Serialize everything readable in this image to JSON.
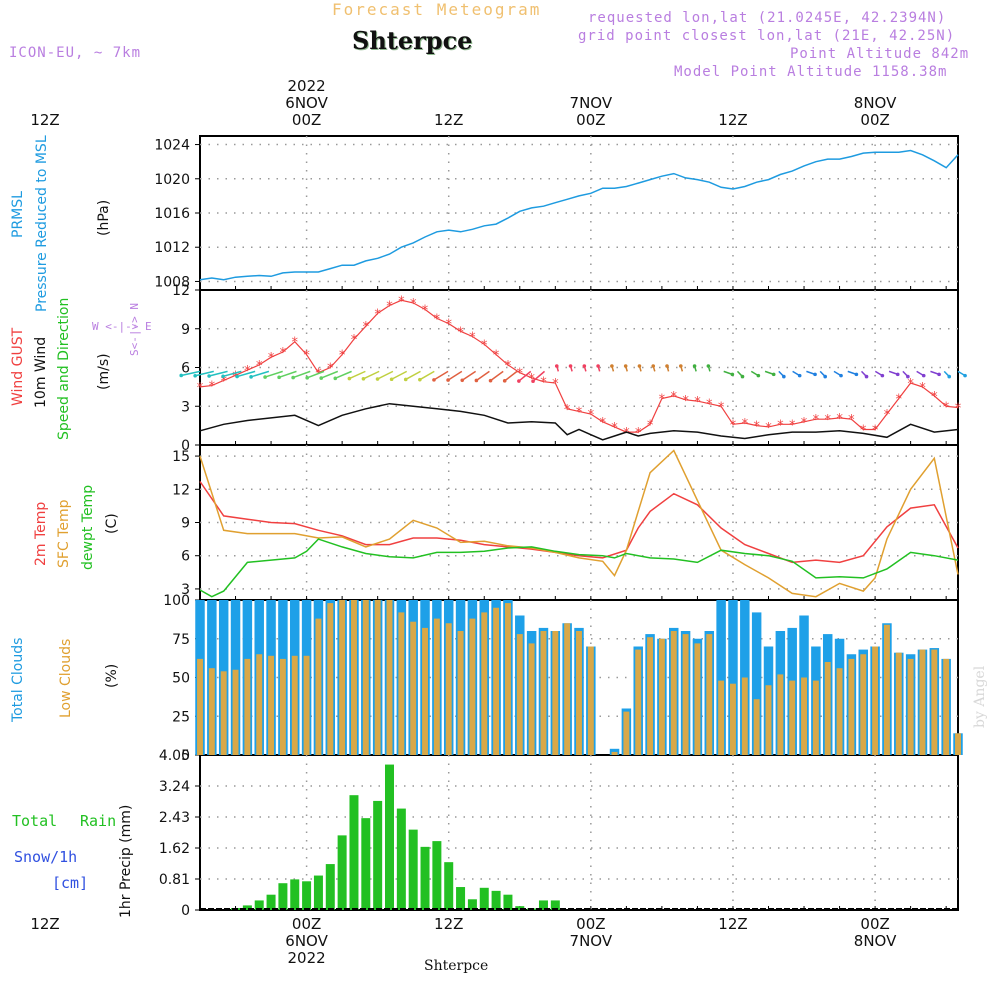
{
  "header": {
    "super_title": "Forecast Meteogram",
    "location": "Shterpce",
    "model": "ICON-EU, ~ 7km",
    "requested": "requested lon,lat (21.0245E, 42.2394N)",
    "grid_point": "grid point closest lon,lat (21E, 42.25N)",
    "point_alt": "Point Altitude 842m",
    "model_alt": "Model Point Altitude 1158.38m"
  },
  "top_axis": [
    {
      "line1": "2022",
      "line2": "6NOV",
      "line3": "00Z"
    },
    {
      "line1": "",
      "line2": "",
      "line3": "12Z"
    },
    {
      "line1": "",
      "line2": "7NOV",
      "line3": "00Z"
    },
    {
      "line1": "",
      "line2": "",
      "line3": "12Z"
    },
    {
      "line1": "",
      "line2": "8NOV",
      "line3": "00Z"
    },
    {
      "line1": "",
      "line2": "",
      "line3": "12Z"
    }
  ],
  "bottom_axis": [
    {
      "line1": "00Z",
      "line2": "6NOV",
      "line3": "2022"
    },
    {
      "line1": "12Z",
      "line2": "",
      "line3": ""
    },
    {
      "line1": "00Z",
      "line2": "7NOV",
      "line3": ""
    },
    {
      "line1": "12Z",
      "line2": "",
      "line3": ""
    },
    {
      "line1": "00Z",
      "line2": "8NOV",
      "line3": ""
    },
    {
      "line1": "12Z",
      "line2": "",
      "line3": ""
    }
  ],
  "footer": {
    "location": "Shterpce",
    "credit": "by Angel"
  },
  "labels": {
    "p1a": "PRMSL",
    "p1b": "Pressure Reduced to MSL",
    "p1u": "(hPa)",
    "p2a": "Wind GUST",
    "p2b": "10m Wind",
    "p2c": "Speed and Direction",
    "p2u": "(m/s)",
    "compass_ns": "S<-|-> N",
    "compass_we": "W <-|-> E",
    "p3a": "2m Temp",
    "p3b": "SFC Temp",
    "p3c": "dewpt Temp",
    "p3u": "(C)",
    "p4a": "Total Clouds",
    "p4b": "Low Clouds",
    "p4u": "(%)",
    "p5a": "Total",
    "p5b": "Rain",
    "p5c": "Snow/1h",
    "p5d": "[cm]",
    "p5u": "1hr Precip (mm)"
  },
  "colors": {
    "pressure": "#1e9be0",
    "gust": "#f04040",
    "wind": "#111111",
    "t2m": "#f04040",
    "tsfc": "#e0a030",
    "dewpt": "#22c022",
    "cloud_total": "#1ea0e8",
    "cloud_low": "#d8a848",
    "rain": "#22c022",
    "snow_label": "#3050e0",
    "grid": "#999999"
  },
  "chart_data": [
    {
      "type": "line",
      "x_unit": "hours from 2022-11-05 15Z",
      "xlim": [
        0,
        64
      ],
      "ylim": [
        1007,
        1025
      ],
      "yticks": [
        1008,
        1012,
        1016,
        1020,
        1024
      ],
      "series": [
        {
          "name": "PRMSL",
          "x": [
            0,
            1,
            2,
            3,
            4,
            5,
            6,
            7,
            8,
            9,
            10,
            11,
            12,
            13,
            14,
            15,
            16,
            17,
            18,
            19,
            20,
            21,
            22,
            23,
            24,
            25,
            26,
            27,
            28,
            29,
            30,
            31,
            32,
            33,
            34,
            35,
            36,
            37,
            38,
            39,
            40,
            41,
            42,
            43,
            44,
            45,
            46,
            47,
            48,
            49,
            50,
            51,
            52,
            53,
            54,
            55,
            56,
            57,
            58,
            59,
            60,
            61,
            62,
            63,
            64
          ],
          "y": [
            1008.2,
            1008.4,
            1008.2,
            1008.5,
            1008.6,
            1008.7,
            1008.6,
            1009.0,
            1009.1,
            1009.1,
            1009.1,
            1009.5,
            1009.9,
            1009.9,
            1010.4,
            1010.7,
            1011.2,
            1012.0,
            1012.5,
            1013.2,
            1013.8,
            1014.0,
            1013.8,
            1014.1,
            1014.5,
            1014.7,
            1015.4,
            1016.2,
            1016.6,
            1016.8,
            1017.2,
            1017.6,
            1018.0,
            1018.3,
            1018.9,
            1018.9,
            1019.1,
            1019.5,
            1019.9,
            1020.3,
            1020.6,
            1020.1,
            1019.9,
            1019.6,
            1019.0,
            1018.8,
            1019.1,
            1019.6,
            1019.9,
            1020.5,
            1020.9,
            1021.5,
            1022.0,
            1022.3,
            1022.3,
            1022.6,
            1023.0,
            1023.1,
            1023.1,
            1023.1,
            1023.3,
            1022.8,
            1022.1,
            1021.3,
            1022.8
          ]
        }
      ]
    },
    {
      "type": "line",
      "x_unit": "hours from 2022-11-05 15Z",
      "xlim": [
        0,
        64
      ],
      "ylim": [
        0,
        12
      ],
      "yticks": [
        0,
        3,
        6,
        9,
        12
      ],
      "series": [
        {
          "name": "Wind GUST",
          "x": [
            0,
            1,
            2,
            3,
            4,
            5,
            6,
            7,
            8,
            9,
            10,
            11,
            12,
            13,
            14,
            15,
            16,
            17,
            18,
            19,
            20,
            21,
            22,
            23,
            24,
            25,
            26,
            27,
            28,
            29,
            30,
            31,
            32,
            33,
            34,
            35,
            36,
            37,
            38,
            39,
            40,
            41,
            42,
            43,
            44,
            45,
            46,
            47,
            48,
            49,
            50,
            51,
            52,
            53,
            54,
            55,
            56,
            57,
            58,
            59,
            60,
            61,
            62,
            63,
            64
          ],
          "y": [
            4.5,
            4.6,
            5.0,
            5.4,
            5.8,
            6.2,
            6.8,
            7.2,
            8.0,
            7.0,
            5.6,
            6.0,
            7.0,
            8.2,
            9.2,
            10.2,
            10.8,
            11.2,
            11.0,
            10.5,
            9.8,
            9.4,
            8.8,
            8.4,
            7.8,
            7.0,
            6.2,
            5.6,
            5.2,
            4.9,
            4.8,
            2.8,
            2.6,
            2.4,
            1.8,
            1.4,
            1.0,
            1.0,
            1.6,
            3.6,
            3.8,
            3.5,
            3.4,
            3.2,
            3.0,
            1.6,
            1.7,
            1.5,
            1.4,
            1.6,
            1.6,
            1.8,
            2.0,
            2.0,
            2.1,
            2.0,
            1.2,
            1.2,
            2.4,
            3.6,
            4.8,
            4.5,
            3.8,
            3.0,
            2.9
          ]
        },
        {
          "name": "10m Wind",
          "x": [
            0,
            2,
            4,
            6,
            8,
            10,
            12,
            14,
            16,
            18,
            20,
            22,
            24,
            26,
            28,
            30,
            31,
            32,
            33,
            34,
            35,
            36,
            37,
            38,
            40,
            42,
            44,
            46,
            48,
            50,
            52,
            54,
            56,
            58,
            60,
            62,
            64
          ],
          "y": [
            1.1,
            1.6,
            1.9,
            2.1,
            2.3,
            1.5,
            2.3,
            2.8,
            3.2,
            3.0,
            2.8,
            2.6,
            2.3,
            1.7,
            1.8,
            1.7,
            0.8,
            1.2,
            0.8,
            0.4,
            0.7,
            1.0,
            0.7,
            0.9,
            1.1,
            1.0,
            0.7,
            0.5,
            0.8,
            1.0,
            1.0,
            1.1,
            0.9,
            0.6,
            1.6,
            1.0,
            1.2
          ]
        }
      ],
      "wind_arrow_count": 56
    },
    {
      "type": "line",
      "x_unit": "hours from 2022-11-05 15Z",
      "xlim": [
        0,
        64
      ],
      "ylim": [
        2,
        16
      ],
      "yticks": [
        3,
        6,
        9,
        12,
        15
      ],
      "series": [
        {
          "name": "2m Temp",
          "x": [
            0,
            2,
            4,
            6,
            8,
            10,
            12,
            14,
            16,
            18,
            20,
            22,
            24,
            26,
            28,
            30,
            32,
            34,
            36,
            37,
            38,
            40,
            42,
            44,
            46,
            48,
            50,
            52,
            54,
            56,
            58,
            60,
            62,
            64
          ],
          "y": [
            12.7,
            9.6,
            9.3,
            9.0,
            8.9,
            8.3,
            7.8,
            7.0,
            7.0,
            7.6,
            7.6,
            7.4,
            7.0,
            6.8,
            6.6,
            6.3,
            6.0,
            5.8,
            6.5,
            8.5,
            10.0,
            11.6,
            10.6,
            8.5,
            7.0,
            6.2,
            5.4,
            5.6,
            5.4,
            6.0,
            8.6,
            10.3,
            10.6,
            6.7
          ]
        },
        {
          "name": "SFC Temp",
          "x": [
            0,
            2,
            4,
            6,
            8,
            10,
            12,
            14,
            16,
            18,
            20,
            22,
            24,
            26,
            28,
            30,
            32,
            34,
            35,
            36,
            37,
            38,
            40,
            42,
            44,
            46,
            48,
            50,
            52,
            54,
            56,
            57,
            58,
            60,
            62,
            64
          ],
          "y": [
            15.0,
            8.3,
            8.0,
            8.0,
            8.0,
            7.6,
            7.7,
            6.8,
            7.5,
            9.2,
            8.5,
            7.2,
            7.3,
            6.9,
            6.7,
            6.3,
            5.8,
            5.5,
            4.2,
            6.5,
            10.0,
            13.5,
            15.5,
            11.0,
            6.5,
            5.2,
            4.0,
            2.6,
            2.3,
            3.5,
            2.8,
            4.0,
            7.5,
            12.0,
            14.8,
            4.3
          ]
        },
        {
          "name": "dewpt Temp",
          "x": [
            0,
            1,
            2,
            4,
            6,
            8,
            9,
            10,
            12,
            14,
            16,
            18,
            20,
            22,
            24,
            26,
            28,
            30,
            32,
            34,
            35,
            36,
            38,
            40,
            42,
            44,
            46,
            48,
            50,
            52,
            54,
            56,
            58,
            60,
            62,
            64
          ],
          "y": [
            2.9,
            2.3,
            2.8,
            5.4,
            5.6,
            5.8,
            6.4,
            7.5,
            6.8,
            6.2,
            5.9,
            5.8,
            6.3,
            6.3,
            6.4,
            6.7,
            6.8,
            6.4,
            6.1,
            6.0,
            5.8,
            6.2,
            5.8,
            5.7,
            5.4,
            6.5,
            6.2,
            6.0,
            5.5,
            4.0,
            4.1,
            4.0,
            4.8,
            6.3,
            6.0,
            5.6
          ]
        }
      ]
    },
    {
      "type": "bar",
      "x_unit": "hours from 2022-11-05 15Z",
      "xlim": [
        0,
        64
      ],
      "ylim": [
        0,
        100
      ],
      "yticks": [
        0,
        25,
        50,
        75,
        100
      ],
      "series": [
        {
          "name": "Total Clouds",
          "x": [
            0,
            1,
            2,
            3,
            4,
            5,
            6,
            7,
            8,
            9,
            10,
            11,
            12,
            13,
            14,
            15,
            16,
            17,
            18,
            19,
            20,
            21,
            22,
            23,
            24,
            25,
            26,
            27,
            28,
            29,
            30,
            31,
            32,
            33,
            34,
            35,
            36,
            37,
            38,
            39,
            40,
            41,
            42,
            43,
            44,
            45,
            46,
            47,
            48,
            49,
            50,
            51,
            52,
            53,
            54,
            55,
            56,
            57,
            58,
            59,
            60,
            61,
            62,
            63,
            64
          ],
          "values": [
            100,
            100,
            100,
            100,
            100,
            100,
            100,
            100,
            100,
            100,
            100,
            100,
            100,
            100,
            100,
            100,
            100,
            100,
            100,
            100,
            100,
            100,
            100,
            100,
            100,
            100,
            100,
            90,
            80,
            82,
            80,
            85,
            82,
            70,
            0,
            4,
            30,
            70,
            78,
            75,
            82,
            80,
            75,
            80,
            100,
            100,
            100,
            92,
            70,
            80,
            82,
            90,
            70,
            78,
            75,
            65,
            68,
            70,
            85,
            66,
            65,
            68,
            69,
            62,
            14
          ],
          "stroke": true
        },
        {
          "name": "Low Clouds",
          "x": [
            0,
            1,
            2,
            3,
            4,
            5,
            6,
            7,
            8,
            9,
            10,
            11,
            12,
            13,
            14,
            15,
            16,
            17,
            18,
            19,
            20,
            21,
            22,
            23,
            24,
            25,
            26,
            27,
            28,
            29,
            30,
            31,
            32,
            33,
            34,
            35,
            36,
            37,
            38,
            39,
            40,
            41,
            42,
            43,
            44,
            45,
            46,
            47,
            48,
            49,
            50,
            51,
            52,
            53,
            54,
            55,
            56,
            57,
            58,
            59,
            60,
            61,
            62,
            63,
            64
          ],
          "values": [
            62,
            56,
            54,
            55,
            62,
            65,
            64,
            62,
            64,
            64,
            88,
            98,
            100,
            100,
            100,
            100,
            100,
            92,
            86,
            82,
            88,
            85,
            80,
            88,
            92,
            95,
            98,
            78,
            72,
            80,
            80,
            85,
            80,
            70,
            0,
            2,
            28,
            68,
            76,
            75,
            80,
            78,
            72,
            78,
            48,
            46,
            50,
            36,
            45,
            52,
            48,
            50,
            48,
            60,
            56,
            62,
            65,
            70,
            84,
            66,
            62,
            68,
            68,
            62,
            14
          ]
        }
      ]
    },
    {
      "type": "bar",
      "x_unit": "hours from 2022-11-05 15Z",
      "xlim": [
        0,
        64
      ],
      "ylim": [
        0,
        4.05
      ],
      "yticks": [
        0,
        0.81,
        1.62,
        2.43,
        3.24,
        4.05
      ],
      "series": [
        {
          "name": "Total Rain",
          "x": [
            3,
            4,
            5,
            6,
            7,
            8,
            9,
            10,
            11,
            12,
            13,
            14,
            15,
            16,
            17,
            18,
            19,
            20,
            21,
            22,
            23,
            24,
            25,
            26
          ],
          "values": [
            0.05,
            0.12,
            0.25,
            0.4,
            0.7,
            0.8,
            0.75,
            0.9,
            1.2,
            1.95,
            3.0,
            2.4,
            2.85,
            3.8,
            2.65,
            2.1,
            1.65,
            1.8,
            1.25,
            0.6,
            0.28,
            0.58,
            0.5,
            0.4
          ]
        },
        {
          "name": "Total Rain tail",
          "x": [
            27,
            28,
            29,
            30
          ],
          "values": [
            0.1,
            0.04,
            0.25,
            0.25
          ]
        }
      ]
    }
  ]
}
